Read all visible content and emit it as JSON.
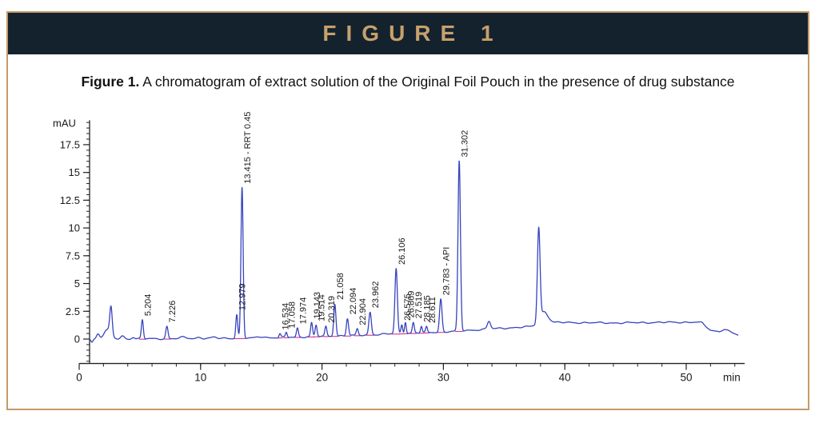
{
  "banner": {
    "title": "FIGURE 1"
  },
  "caption": {
    "label": "Figure 1.",
    "text": " A chromatogram of extract solution of the Original Foil Pouch in the presence of drug substance"
  },
  "colors": {
    "banner_bg": "#14222e",
    "banner_text": "#c7a06c",
    "box_border": "#c49b66",
    "trace": "#3743be",
    "integration": "#d6368b",
    "axis": "#222222",
    "label_text": "#1a1a1a"
  },
  "chart_data": {
    "type": "line",
    "title": "",
    "ylabel": "mAU",
    "xlabel": "min",
    "x_ticks": [
      0,
      10,
      20,
      30,
      40,
      50
    ],
    "y_ticks": [
      0,
      2.5,
      5,
      7.5,
      10,
      12.5,
      15,
      17.5
    ],
    "x_minor_step": 2,
    "x_minor_max": 54,
    "y_minor_step": 0.5,
    "y_minor_min": -2,
    "y_minor_max": 19.5,
    "xlim": [
      0,
      55
    ],
    "ylim": [
      -2.2,
      19.7
    ],
    "grid": false,
    "legend": "none",
    "trace_start": 0.86,
    "trace_end": 54.3,
    "peaks": [
      {
        "rt": 5.204,
        "h": 1.7,
        "sigma": 0.08,
        "label": "5.204"
      },
      {
        "rt": 7.226,
        "h": 1.1,
        "sigma": 0.09,
        "label": "7.226"
      },
      {
        "rt": 12.979,
        "h": 2.15,
        "sigma": 0.08,
        "label": "12.979"
      },
      {
        "rt": 13.415,
        "h": 13.55,
        "sigma": 0.09,
        "label": "13.415 - RRT 0.45"
      },
      {
        "rt": 16.534,
        "h": 0.33,
        "sigma": 0.07,
        "label": "16.534"
      },
      {
        "rt": 17.058,
        "h": 0.45,
        "sigma": 0.07,
        "label": "17.058"
      },
      {
        "rt": 17.974,
        "h": 0.8,
        "sigma": 0.08,
        "label": "17.974"
      },
      {
        "rt": 19.143,
        "h": 1.25,
        "sigma": 0.08,
        "label": "19.143"
      },
      {
        "rt": 19.514,
        "h": 1.0,
        "sigma": 0.08,
        "label": "19.514"
      },
      {
        "rt": 20.319,
        "h": 0.85,
        "sigma": 0.08,
        "label": "20.319"
      },
      {
        "rt": 21.058,
        "h": 2.9,
        "sigma": 0.09,
        "label": "21.058"
      },
      {
        "rt": 22.094,
        "h": 1.55,
        "sigma": 0.09,
        "label": "22.094"
      },
      {
        "rt": 22.904,
        "h": 0.55,
        "sigma": 0.08,
        "label": "22.904"
      },
      {
        "rt": 23.962,
        "h": 2.05,
        "sigma": 0.1,
        "label": "23.962"
      },
      {
        "rt": 26.106,
        "h": 5.85,
        "sigma": 0.1,
        "label": "26.106"
      },
      {
        "rt": 26.575,
        "h": 0.8,
        "sigma": 0.07,
        "label": "26.575"
      },
      {
        "rt": 26.869,
        "h": 1.05,
        "sigma": 0.07,
        "label": "26.869"
      },
      {
        "rt": 27.519,
        "h": 0.95,
        "sigma": 0.08,
        "label": "27.519"
      },
      {
        "rt": 28.185,
        "h": 0.6,
        "sigma": 0.07,
        "label": "28.185"
      },
      {
        "rt": 28.611,
        "h": 0.5,
        "sigma": 0.07,
        "label": "28.611"
      },
      {
        "rt": 29.783,
        "h": 2.95,
        "sigma": 0.1,
        "label": "29.783 - API"
      },
      {
        "rt": 31.302,
        "h": 15.3,
        "sigma": 0.1,
        "label": "31.302"
      }
    ],
    "unlabeled_features": [
      {
        "rt": 1.05,
        "h": -0.25,
        "sigma": 0.08
      },
      {
        "rt": 1.55,
        "h": 0.42,
        "sigma": 0.12
      },
      {
        "rt": 2.3,
        "h": 0.8,
        "sigma": 0.28
      },
      {
        "rt": 2.62,
        "h": 2.5,
        "sigma": 0.1
      },
      {
        "rt": 3.55,
        "h": 0.25,
        "sigma": 0.15
      },
      {
        "rt": 4.45,
        "h": 0.15,
        "sigma": 0.12
      },
      {
        "rt": 8.6,
        "h": 0.12,
        "sigma": 0.25
      },
      {
        "rt": 9.9,
        "h": 0.1,
        "sigma": 0.2
      },
      {
        "rt": 11.1,
        "h": 0.1,
        "sigma": 0.2
      },
      {
        "rt": 15.0,
        "h": 0.12,
        "sigma": 0.3
      },
      {
        "rt": 33.75,
        "h": 0.7,
        "sigma": 0.13
      },
      {
        "rt": 37.85,
        "h": 8.45,
        "sigma": 0.11
      },
      {
        "rt": 38.3,
        "h": 1.1,
        "sigma": 0.3
      }
    ],
    "baseline_nodes": [
      [
        0.86,
        0
      ],
      [
        5,
        0.02
      ],
      [
        10,
        0.05
      ],
      [
        14,
        0.08
      ],
      [
        16,
        0.12
      ],
      [
        18,
        0.18
      ],
      [
        20,
        0.25
      ],
      [
        22,
        0.3
      ],
      [
        24,
        0.38
      ],
      [
        26,
        0.48
      ],
      [
        28,
        0.55
      ],
      [
        29.5,
        0.62
      ],
      [
        31,
        0.7
      ],
      [
        33,
        0.85
      ],
      [
        35,
        0.98
      ],
      [
        37,
        1.1
      ],
      [
        38.2,
        1.35
      ],
      [
        38.8,
        1.5
      ],
      [
        44,
        1.45
      ],
      [
        48,
        1.5
      ],
      [
        50.8,
        1.52
      ],
      [
        51.3,
        1.45
      ],
      [
        52.0,
        0.78
      ],
      [
        52.7,
        0.68
      ],
      [
        53.1,
        0.9
      ],
      [
        53.5,
        0.72
      ],
      [
        53.9,
        0.5
      ],
      [
        54.3,
        0.35
      ]
    ]
  }
}
